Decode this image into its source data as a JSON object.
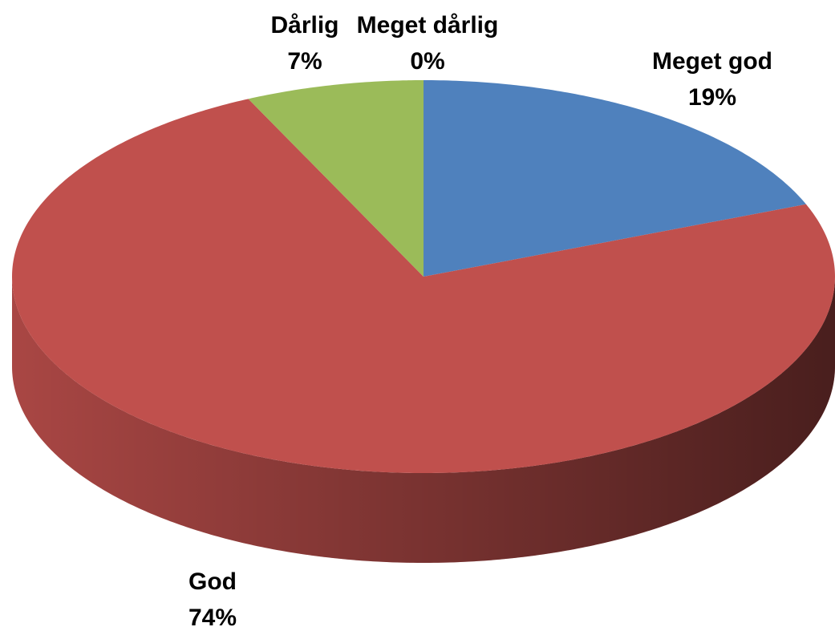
{
  "chart_data": {
    "type": "pie",
    "categories": [
      "Meget god",
      "God",
      "Dårlig",
      "Meget dårlig"
    ],
    "values": [
      19,
      74,
      7,
      0
    ],
    "value_labels": [
      "19%",
      "74%",
      "7%",
      "0%"
    ],
    "colors": [
      "#4f81bd",
      "#c0504d",
      "#9bbb59",
      "#8064a2"
    ]
  }
}
